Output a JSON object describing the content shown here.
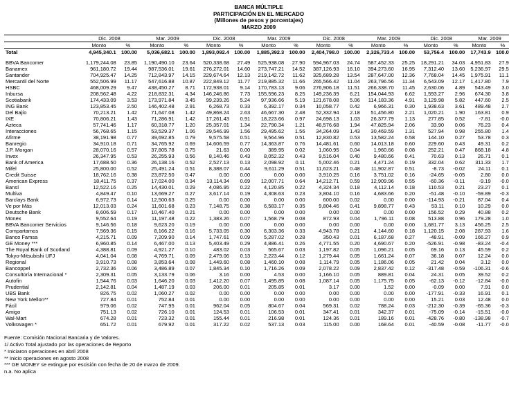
{
  "header": {
    "line1": "BANCA MÚLTIPLE",
    "line2": "PARTICIPACIÓN EN EL MERCADO",
    "line3": "(Millones de pesos y porcentajes)",
    "line4": "MARZO 2009"
  },
  "periods": [
    "Dic. 2008",
    "Mar. 2009",
    "Dic. 2008",
    "Mar. 2009",
    "Dic. 2008",
    "Mar. 2009",
    "Dic. 2008",
    "Mar. 2009"
  ],
  "subheads": [
    "Monto",
    "%"
  ],
  "total_label": "Total",
  "total_values": [
    "4,945,340.1",
    "100.00",
    "5,036,682.1",
    "100.00",
    "1,893,092.4",
    "100.00",
    "1,885,392.3",
    "100.00",
    "2,404,798.0",
    "100.00",
    "2,326,733.4",
    "100.00",
    "53,756.4",
    "100.00",
    "17,743.9",
    "100.00"
  ],
  "rows": [
    {
      "label": "BBVA Bancomer",
      "v": [
        "1,179,244.08",
        "23.85",
        "1,190,490.10",
        "23.64",
        "520,338.68",
        "27.49",
        "525,938.08",
        "27.90",
        "594,967.03",
        "24.74",
        "587,452.33",
        "25.25",
        "18,291.21",
        "34.03",
        "4,951.83",
        "27.91"
      ]
    },
    {
      "label": "Banamex",
      "v": [
        "961,180.72",
        "19.44",
        "987,536.01",
        "19.61",
        "276,272.01",
        "14.60",
        "273,747.21",
        "14.52",
        "387,126.93",
        "16.10",
        "394,273.60",
        "16.95",
        "7,312.40",
        "13.60",
        "5,236.97",
        "29.51"
      ]
    },
    {
      "label": "Santander",
      "v": [
        "704,925.47",
        "14.25",
        "712,843.97",
        "14.15",
        "229,674.64",
        "12.13",
        "219,142.72",
        "11.62",
        "325,689.28",
        "13.54",
        "287,647.00",
        "12.36",
        "7,768.04",
        "14.45",
        "1,975.91",
        "11.14"
      ]
    },
    {
      "label": "Mercantil del Norte",
      "v": [
        "552,506.99",
        "11.17",
        "547,616.88",
        "10.87",
        "222,849.12",
        "11.77",
        "219,885.32",
        "11.66",
        "265,566.42",
        "11.04",
        "263,796.56",
        "11.34",
        "6,543.09",
        "12.17",
        "1,417.80",
        "7.99"
      ]
    },
    {
      "label": "HSBC",
      "v": [
        "468,009.29",
        "9.47",
        "438,450.27",
        "8.71",
        "172,938.01",
        "9.14",
        "170,783.13",
        "9.06",
        "276,906.18",
        "11.51",
        "266,338.70",
        "11.45",
        "2,630.06",
        "4.89",
        "543.49",
        "3.06"
      ]
    },
    {
      "label": "Inbursa",
      "v": [
        "208,562.48",
        "4.22",
        "218,832.31",
        "4.34",
        "146,246.86",
        "7.73",
        "155,596.23",
        "8.25",
        "149,236.39",
        "6.21",
        "154,044.93",
        "6.62",
        "1,593.27",
        "2.96",
        "674.30",
        "3.80"
      ]
    },
    {
      "label": "Scotiabank",
      "v": [
        "174,433.09",
        "3.53",
        "173,971.84",
        "3.45",
        "99,239.26",
        "5.24",
        "97,936.66",
        "5.19",
        "121,678.08",
        "5.06",
        "114,183.36",
        "4.91",
        "3,129.98",
        "5.82",
        "447.60",
        "2.52"
      ]
    },
    {
      "label": "ING Bank",
      "v": [
        "123,853.45",
        "2.50",
        "146,402.48",
        "2.91",
        "6,268.73",
        "0.33",
        "6,392.17",
        "0.34",
        "10,058.77",
        "0.42",
        "6,966.31",
        "0.30",
        "1,938.63",
        "3.61",
        "489.48",
        "2.76"
      ]
    },
    {
      "label": "Del Bajío",
      "v": [
        "70,213.21",
        "1.42",
        "71,647.08",
        "1.42",
        "49,868.24",
        "2.63",
        "46,667.30",
        "2.48",
        "52,332.94",
        "2.18",
        "51,456.80",
        "2.21",
        "1,020.21",
        "1.90",
        "163.81",
        "0.92"
      ]
    },
    {
      "label": "IXE",
      "v": [
        "70,806.21",
        "1.43",
        "71,286.91",
        "1.42",
        "17,261.43",
        "0.91",
        "18,223.66",
        "0.97",
        "24,698.13",
        "1.03",
        "26,377.79",
        "1.13",
        "277.85",
        "0.52",
        "-7.81",
        "-0.04"
      ]
    },
    {
      "label": "Azteca",
      "v": [
        "57,741.46",
        "1.17",
        "60,318.77",
        "1.20",
        "25,357.01",
        "1.34",
        "22,790.34",
        "1.21",
        "46,576.68",
        "1.94",
        "47,825.94",
        "2.06",
        "33.90",
        "0.06",
        "76.23",
        "0.43"
      ]
    },
    {
      "label": "Interacciones",
      "v": [
        "56,768.65",
        "1.15",
        "53,529.37",
        "1.06",
        "29,546.99",
        "1.56",
        "29,495.62",
        "1.56",
        "34,264.09",
        "1.43",
        "30,469.59",
        "1.31",
        "527.94",
        "0.98",
        "255.80",
        "1.44"
      ]
    },
    {
      "label": "Afirme",
      "v": [
        "38,191.98",
        "0.77",
        "39,692.85",
        "0.79",
        "9,575.58",
        "0.51",
        "9,564.96",
        "0.51",
        "12,830.82",
        "0.53",
        "13,582.24",
        "0.58",
        "144.10",
        "0.27",
        "53.78",
        "0.30"
      ]
    },
    {
      "label": "Banregio",
      "v": [
        "34,910.18",
        "0.71",
        "34,765.92",
        "0.69",
        "14,606.59",
        "0.77",
        "14,363.87",
        "0.76",
        "14,481.61",
        "0.60",
        "14,013.18",
        "0.60",
        "229.60",
        "0.43",
        "49.31",
        "0.28"
      ]
    },
    {
      "label": "J.P. Morgan",
      "v": [
        "28,070.16",
        "0.57",
        "37,805.78",
        "0.75",
        "21.63",
        "0.00",
        "389.95",
        "0.02",
        "1,060.95",
        "0.04",
        "1,960.66",
        "0.08",
        "252.21",
        "0.47",
        "868.18",
        "4.89"
      ]
    },
    {
      "label": "Invex",
      "v": [
        "26,347.95",
        "0.53",
        "26,255.93",
        "0.56",
        "8,140.46",
        "0.43",
        "8,052.32",
        "0.43",
        "9,516.04",
        "0.40",
        "9,480.66",
        "0.41",
        "70.63",
        "0.13",
        "26.71",
        "0.15"
      ]
    },
    {
      "label": "Bank of America",
      "v": [
        "17,688.50",
        "0.36",
        "26,138.16",
        "0.52",
        "2,527.13",
        "0.13",
        "2,098.92",
        "0.11",
        "5,002.46",
        "0.21",
        "4,471.24",
        "0.19",
        "332.04",
        "0.62",
        "311.33",
        "1.75"
      ]
    },
    {
      "label": "Mifel",
      "v": [
        "25,800.00",
        "0.52",
        "25,491.24",
        "0.51",
        "8,388.07",
        "0.44",
        "9,611.29",
        "0.51",
        "11,623.21",
        "0.48",
        "11,902.87",
        "0.51",
        "-8.73",
        "-0.02",
        "24.11",
        "0.14"
      ]
    },
    {
      "label": "Credit Suisse",
      "v": [
        "18,762.16",
        "0.38",
        "23,872.50",
        "0.47",
        "0.00",
        "0.00",
        "0.00",
        "0.00",
        "3,910.25",
        "0.16",
        "3,751.02",
        "0.16",
        "-24.65",
        "-0.05",
        "2.80",
        "0.02"
      ]
    },
    {
      "label": "American Express",
      "v": [
        "18,411.75",
        "0.37",
        "17,024.00",
        "0.34",
        "13,114.34",
        "0.69",
        "12,007.71",
        "0.64",
        "14,212.71",
        "0.59",
        "12,909.96",
        "0.55",
        "-60.36",
        "-0.11",
        "-9.19",
        "-0.05"
      ]
    },
    {
      "label": "Bansí",
      "v": [
        "12,522.16",
        "0.25",
        "14,430.01",
        "0.29",
        "4,086.95",
        "0.22",
        "4,120.85",
        "0.22",
        "4,324.34",
        "0.18",
        "4,112.14",
        "0.18",
        "110.53",
        "0.21",
        "23.27",
        "0.13"
      ]
    },
    {
      "label": "Multiva",
      "v": [
        "4,849.47",
        "0.10",
        "13,669.27",
        "0.27",
        "3,617.14",
        "0.19",
        "4,308.63",
        "0.23",
        "3,804.10",
        "0.16",
        "4,683.66",
        "0.20",
        "-51.48",
        "-0.10",
        "-59.89",
        "-0.34"
      ]
    },
    {
      "label": "Barclays Bank",
      "v": [
        "6,972.73",
        "0.14",
        "12,500.63",
        "0.25",
        "0.00",
        "0.00",
        "0.00",
        "0.00",
        "600.00",
        "0.02",
        "0.00",
        "0.00",
        "-114.93",
        "-0.21",
        "87.04",
        "0.49"
      ]
    },
    {
      "label": "Ve por Más",
      "v": [
        "12,013.03",
        "0.24",
        "11,601.68",
        "0.23",
        "7,148.75",
        "0.38",
        "6,583.17",
        "0.35",
        "9,804.46",
        "0.41",
        "9,898.77",
        "0.43",
        "53.11",
        "0.10",
        "10.29",
        "0.06"
      ]
    },
    {
      "label": "Deutsche Bank",
      "v": [
        "8,606.59",
        "0.17",
        "10,467.40",
        "0.21",
        "0.00",
        "0.00",
        "0.00",
        "0.00",
        "0.00",
        "0.00",
        "0.00",
        "0.00",
        "156.52",
        "0.29",
        "40.88",
        "0.23"
      ]
    },
    {
      "label": "Monex",
      "v": [
        "9,552.64",
        "0.19",
        "11,197.48",
        "0.22",
        "1,383.26",
        "0.07",
        "1,568.79",
        "0.08",
        "872.93",
        "0.04",
        "1,796.11",
        "0.08",
        "513.88",
        "0.96",
        "179.28",
        "1.01"
      ]
    },
    {
      "label": "BBVA Bancomer Servicios",
      "v": [
        "9,146.56",
        "0.18",
        "9,623.20",
        "0.19",
        "0.00",
        "0.00",
        "0.00",
        "0.00",
        "0.00",
        "0.00",
        "0.00",
        "0.00",
        "1,681.77",
        "3.13",
        "456.25",
        "2.57"
      ]
    },
    {
      "label": "Compartamos",
      "v": [
        "7,569.36",
        "0.15",
        "8,166.22",
        "0.16",
        "5,733.05",
        "0.30",
        "6,303.36",
        "0.33",
        "4,943.78",
        "0.21",
        "4,144.60",
        "0.18",
        "1,120.15",
        "2.08",
        "287.93",
        "1.62"
      ]
    },
    {
      "label": "Banco Famsa",
      "v": [
        "4,215.71",
        "0.09",
        "7,209.90",
        "0.14",
        "1,747.61",
        "0.09",
        "5,287.02",
        "0.28",
        "350.43",
        "0.01",
        "6,187.68",
        "0.27",
        "-48.91",
        "-0.09",
        "166.27",
        "0.94"
      ]
    },
    {
      "label": "GE Money ***",
      "v": [
        "6,960.85",
        "0.14",
        "6,467.00",
        "0.13",
        "5,403.49",
        "0.29",
        "4,886.41",
        "0.26",
        "4,771.55",
        "0.20",
        "4,690.67",
        "0.20",
        "-526.91",
        "-0.98",
        "-83.24",
        "-0.47"
      ]
    },
    {
      "label": "The Royal Bank of Scotland",
      "v": [
        "4,388.81",
        "0.09",
        "4,921.27",
        "0.10",
        "483.02",
        "0.03",
        "565.67",
        "0.03",
        "1,197.82",
        "0.05",
        "1,096.21",
        "0.05",
        "69.16",
        "0.13",
        "45.59",
        "0.26"
      ]
    },
    {
      "label": "Tokyo-Mitsubishi UFJ",
      "v": [
        "4,041.04",
        "0.08",
        "4,769.71",
        "0.09",
        "2,479.06",
        "0.13",
        "2,223.44",
        "0.12",
        "1,279.44",
        "0.05",
        "1,661.24",
        "0.07",
        "36.18",
        "0.07",
        "12.24",
        "0.07"
      ]
    },
    {
      "label": "Regional",
      "v": [
        "3,910.73",
        "0.08",
        "3,853.64",
        "0.08",
        "1,449.60",
        "0.08",
        "1,460.10",
        "0.08",
        "1,114.79",
        "0.05",
        "1,186.06",
        "0.05",
        "21.42",
        "0.04",
        "3.12",
        "0.02"
      ]
    },
    {
      "label": "Bancoppel",
      "v": [
        "2,732.36",
        "0.06",
        "3,486.89",
        "0.07",
        "1,845.34",
        "0.10",
        "1,716.26",
        "0.09",
        "2,078.22",
        "0.09",
        "2,837.42",
        "0.12",
        "-317.48",
        "-0.59",
        "-106.31",
        "-0.60"
      ]
    },
    {
      "label": "Consultoría Internacional *",
      "v": [
        "2,309.31",
        "0.05",
        "3,133.79",
        "0.06",
        "3.16",
        "0.00",
        "4.53",
        "0.00",
        "1,166.10",
        "0.05",
        "889.81",
        "0.04",
        "24.31",
        "0.05",
        "39.52",
        "0.22"
      ]
    },
    {
      "label": "Autofin",
      "v": [
        "1,544.76",
        "0.03",
        "1,646.20",
        "0.03",
        "1,412.20",
        "0.07",
        "1,495.85",
        "0.08",
        "1,087.14",
        "0.05",
        "1,175.75",
        "0.05",
        "-62.13",
        "-0.12",
        "-12.84",
        "-0.07"
      ]
    },
    {
      "label": "Prudential",
      "v": [
        "2,142.81",
        "0.04",
        "1,487.19",
        "0.03",
        "206.00",
        "0.01",
        "205.85",
        "0.01",
        "3.17",
        "0.00",
        "1.52",
        "0.00",
        "-0.09",
        "0.00",
        "7.91",
        "0.04"
      ]
    },
    {
      "label": "UBS Bank",
      "v": [
        "826.75",
        "0.02",
        "1,060.27",
        "0.02",
        "0.00",
        "0.00",
        "0.00",
        "0.00",
        "0.00",
        "0.00",
        "0.00",
        "0.00",
        "-177.91",
        "-0.33",
        "16.91",
        "0.10"
      ]
    },
    {
      "label": "New York Mellon**",
      "v": [
        "727.84",
        "0.01",
        "752.84",
        "0.01",
        "0.00",
        "0.00",
        "0.00",
        "0.00",
        "0.00",
        "0.00",
        "0.00",
        "0.00",
        "15.21",
        "0.03",
        "12.48",
        "0.07"
      ]
    },
    {
      "label": "Fácil",
      "v": [
        "979.06",
        "0.02",
        "747.95",
        "0.01",
        "962.04",
        "0.05",
        "804.67",
        "0.04",
        "569.31",
        "0.02",
        "788.24",
        "0.03",
        "-212.30",
        "-0.39",
        "-65.36",
        "-0.37"
      ]
    },
    {
      "label": "Amigo",
      "v": [
        "751.13",
        "0.02",
        "726.10",
        "0.01",
        "124.53",
        "0.01",
        "106.53",
        "0.01",
        "347.41",
        "0.01",
        "342.37",
        "0.01",
        "-75.09",
        "-0.14",
        "-15.51",
        "-0.09"
      ]
    },
    {
      "label": "Wal-Mart",
      "v": [
        "674.28",
        "0.01",
        "723.32",
        "0.01",
        "155.44",
        "0.01",
        "216.98",
        "0.01",
        "124.36",
        "0.01",
        "189.16",
        "0.01",
        "-428.76",
        "-0.80",
        "-138.98",
        "-0.78"
      ]
    },
    {
      "label": "Volkswagen *",
      "v": [
        "651.72",
        "0.01",
        "679.92",
        "0.01",
        "317.22",
        "0.02",
        "537.13",
        "0.03",
        "115.00",
        "0.00",
        "168.64",
        "0.01",
        "-40.59",
        "-0.08",
        "-11.77",
        "-0.07"
      ]
    }
  ],
  "footnotes": [
    "Fuente: Comisión Nacional Bancaria y de Valores.",
    "1/ Activo Total ajustado por las operaciones de Reporto",
    "* Iniciaron operaciones en abril 2008",
    "** Inicio operaciones en agosto 2008",
    "*** GE MONEY se extingue por escisión con fecha de 20 de marzo de 2009.",
    "n.a. No aplica"
  ]
}
